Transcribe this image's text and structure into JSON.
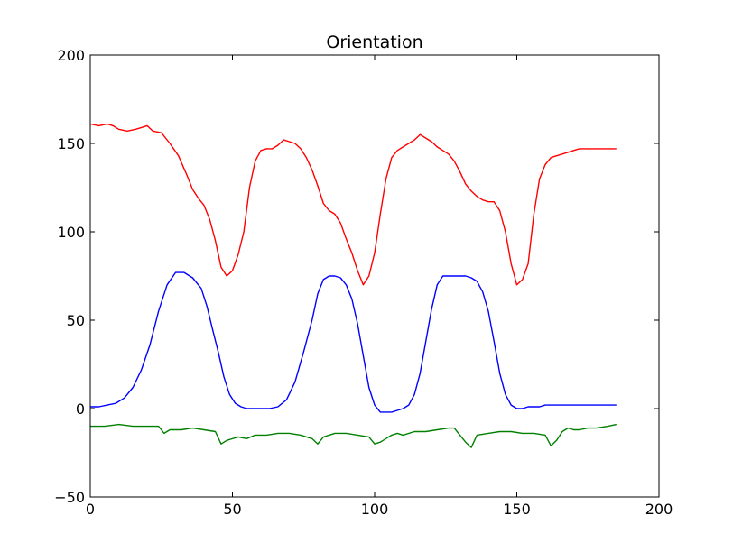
{
  "chart_data": {
    "type": "line",
    "title": "Orientation",
    "xlabel": "",
    "ylabel": "",
    "xlim": [
      0,
      200
    ],
    "ylim": [
      -50,
      200
    ],
    "xticks": [
      0,
      50,
      100,
      150,
      200
    ],
    "yticks": [
      -50,
      0,
      50,
      100,
      150,
      200
    ],
    "xtick_labels": [
      "0",
      "50",
      "100",
      "150",
      "200"
    ],
    "ytick_labels": [
      "−50",
      "0",
      "50",
      "100",
      "150",
      "200"
    ],
    "grid": false,
    "legend": null,
    "series": [
      {
        "color": "#ff0000",
        "x": [
          0,
          3,
          6,
          8,
          10,
          13,
          16,
          18,
          20,
          22,
          25,
          28,
          31,
          34,
          36,
          38,
          40,
          42,
          44,
          46,
          48,
          50,
          52,
          54,
          56,
          58,
          60,
          62,
          64,
          66,
          68,
          70,
          72,
          74,
          76,
          78,
          80,
          82,
          84,
          86,
          88,
          90,
          92,
          94,
          96,
          98,
          100,
          102,
          104,
          106,
          108,
          110,
          112,
          114,
          116,
          118,
          120,
          122,
          124,
          126,
          128,
          130,
          132,
          134,
          136,
          138,
          140,
          142,
          144,
          146,
          148,
          150,
          152,
          154,
          156,
          158,
          160,
          162,
          164,
          166,
          168,
          170,
          172,
          174,
          176,
          178,
          180,
          182,
          185
        ],
        "y": [
          161,
          160,
          161,
          160,
          158,
          157,
          158,
          159,
          160,
          157,
          156,
          150,
          143,
          132,
          124,
          119,
          115,
          107,
          95,
          80,
          75,
          78,
          87,
          100,
          125,
          140,
          146,
          147,
          147,
          149,
          152,
          151,
          150,
          147,
          142,
          135,
          126,
          116,
          112,
          110,
          105,
          96,
          88,
          78,
          70,
          75,
          88,
          110,
          130,
          142,
          146,
          148,
          150,
          152,
          155,
          153,
          151,
          148,
          146,
          144,
          140,
          134,
          127,
          123,
          120,
          118,
          117,
          117,
          112,
          100,
          82,
          70,
          73,
          82,
          110,
          130,
          138,
          142,
          143,
          144,
          145,
          146,
          147,
          147,
          147,
          147,
          147,
          147,
          147
        ],
        "values_note": ""
      },
      {
        "color": "#0000ff",
        "x": [
          0,
          3,
          6,
          9,
          12,
          15,
          18,
          21,
          24,
          27,
          30,
          33,
          36,
          39,
          41,
          43,
          45,
          47,
          49,
          51,
          53,
          55,
          57,
          60,
          63,
          66,
          69,
          72,
          75,
          78,
          80,
          82,
          84,
          86,
          88,
          90,
          92,
          94,
          96,
          98,
          100,
          102,
          104,
          106,
          108,
          110,
          112,
          114,
          116,
          118,
          120,
          122,
          124,
          126,
          128,
          130,
          132,
          134,
          136,
          138,
          140,
          142,
          144,
          146,
          148,
          150,
          152,
          154,
          156,
          158,
          160,
          162,
          164,
          166,
          168,
          170,
          172,
          174,
          176,
          178,
          180,
          182,
          185
        ],
        "y": [
          1,
          1,
          2,
          3,
          6,
          12,
          22,
          36,
          55,
          70,
          77,
          77,
          74,
          68,
          58,
          45,
          32,
          18,
          8,
          3,
          1,
          0,
          0,
          0,
          0,
          1,
          5,
          15,
          32,
          50,
          65,
          73,
          75,
          75,
          74,
          70,
          62,
          48,
          30,
          12,
          2,
          -2,
          -2,
          -2,
          -1,
          0,
          2,
          8,
          20,
          38,
          56,
          70,
          75,
          75,
          75,
          75,
          75,
          74,
          72,
          66,
          55,
          38,
          20,
          8,
          2,
          0,
          0,
          1,
          1,
          1,
          2,
          2,
          2,
          2,
          2,
          2,
          2,
          2,
          2,
          2,
          2,
          2,
          2
        ],
        "values_note": ""
      },
      {
        "color": "#008000",
        "x": [
          0,
          5,
          10,
          15,
          20,
          24,
          26,
          28,
          32,
          36,
          40,
          44,
          46,
          48,
          52,
          55,
          58,
          62,
          66,
          70,
          74,
          78,
          80,
          82,
          86,
          90,
          94,
          98,
          100,
          102,
          104,
          106,
          108,
          110,
          114,
          118,
          122,
          126,
          128,
          130,
          132,
          134,
          136,
          140,
          144,
          148,
          152,
          156,
          160,
          162,
          164,
          166,
          168,
          170,
          172,
          175,
          178,
          182,
          185
        ],
        "y": [
          -10,
          -10,
          -9,
          -10,
          -10,
          -10,
          -14,
          -12,
          -12,
          -11,
          -12,
          -13,
          -20,
          -18,
          -16,
          -17,
          -15,
          -15,
          -14,
          -14,
          -15,
          -17,
          -20,
          -16,
          -14,
          -14,
          -15,
          -16,
          -20,
          -19,
          -17,
          -15,
          -14,
          -15,
          -13,
          -13,
          -12,
          -11,
          -11,
          -15,
          -19,
          -22,
          -15,
          -14,
          -13,
          -13,
          -14,
          -14,
          -15,
          -21,
          -18,
          -13,
          -11,
          -12,
          -12,
          -11,
          -11,
          -10,
          -9
        ],
        "values_note": ""
      }
    ]
  }
}
